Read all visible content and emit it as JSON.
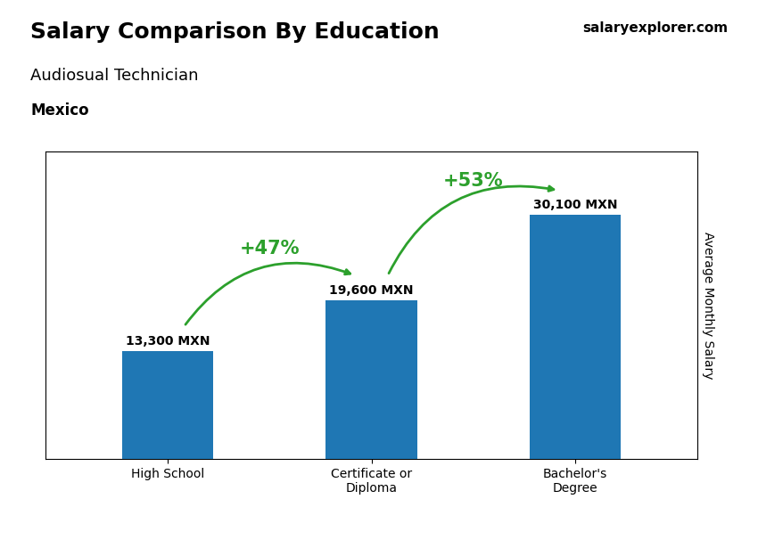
{
  "chart_data": {
    "type": "bar",
    "title": "Salary Comparison By Education",
    "subtitle": [
      "Audiosual Technician",
      "Mexico"
    ],
    "source": "salaryexplorer.com",
    "ylabel": "Average Monthly Salary",
    "categories": [
      "High School",
      "Certificate or\nDiploma",
      "Bachelor's\nDegree"
    ],
    "values": [
      13300,
      19600,
      30100
    ],
    "value_labels": [
      "13,300 MXN",
      "19,600 MXN",
      "30,100 MXN"
    ],
    "data_labels": true,
    "annotations": [
      "+47%",
      "+53%"
    ],
    "ylim": [
      0,
      38000
    ],
    "tick_labels": "x",
    "grid": false
  }
}
